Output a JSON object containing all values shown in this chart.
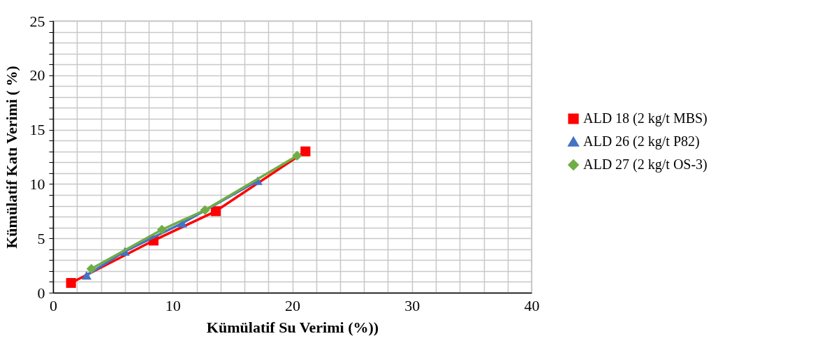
{
  "chart_data": {
    "type": "line",
    "xlabel": "Kümülatif Su Verimi (%))",
    "ylabel": "Kümülatif  Katı Verimi ( %)",
    "xlim": [
      0,
      40
    ],
    "ylim": [
      0,
      25
    ],
    "xticks": [
      0,
      {
        "value": 2,
        "label": null
      },
      {
        "value": 4,
        "label": null
      },
      {
        "value": 6,
        "label": null
      },
      {
        "value": 8,
        "label": null
      },
      10,
      {
        "value": 12,
        "label": null
      },
      {
        "value": 14,
        "label": null
      },
      {
        "value": 16,
        "label": null
      },
      {
        "value": 18,
        "label": null
      },
      20,
      {
        "value": 22,
        "label": null
      },
      {
        "value": 24,
        "label": null
      },
      {
        "value": 26,
        "label": null
      },
      {
        "value": 28,
        "label": null
      },
      30,
      {
        "value": 32,
        "label": null
      },
      {
        "value": 34,
        "label": null
      },
      {
        "value": 36,
        "label": null
      },
      {
        "value": 38,
        "label": null
      },
      40
    ],
    "yticks": [
      0,
      {
        "value": 1,
        "label": null
      },
      {
        "value": 2,
        "label": null
      },
      {
        "value": 3,
        "label": null
      },
      {
        "value": 4,
        "label": null
      },
      5,
      {
        "value": 6,
        "label": null
      },
      {
        "value": 7,
        "label": null
      },
      {
        "value": 8,
        "label": null
      },
      {
        "value": 9,
        "label": null
      },
      10,
      {
        "value": 11,
        "label": null
      },
      {
        "value": 12,
        "label": null
      },
      {
        "value": 13,
        "label": null
      },
      {
        "value": 14,
        "label": null
      },
      15,
      {
        "value": 16,
        "label": null
      },
      {
        "value": 17,
        "label": null
      },
      {
        "value": 18,
        "label": null
      },
      {
        "value": 19,
        "label": null
      },
      20,
      {
        "value": 21,
        "label": null
      },
      {
        "value": 22,
        "label": null
      },
      {
        "value": 23,
        "label": null
      },
      {
        "value": 24,
        "label": null
      },
      25
    ],
    "grid": true,
    "legend": "right",
    "line_style": "solid",
    "series": [
      {
        "name": "ALD 18 (2 kg/t MBS)",
        "color": "#ff0000",
        "marker": "square",
        "x": [
          1.5,
          8.4,
          13.6,
          21.1
        ],
        "values": [
          0.9,
          4.8,
          7.5,
          13.0
        ]
      },
      {
        "name": "ALD 26 (2 kg/t P82)",
        "color": "#4472c4",
        "marker": "triangle",
        "x": [
          2.8,
          6.0,
          10.8,
          17.1
        ],
        "values": [
          1.6,
          3.8,
          6.4,
          10.3
        ]
      },
      {
        "name": "ALD 27 (2 kg/t OS-3)",
        "color": "#70ad47",
        "marker": "diamond",
        "x": [
          3.2,
          9.1,
          12.7,
          20.4
        ],
        "values": [
          2.2,
          5.8,
          7.6,
          12.6
        ]
      }
    ]
  }
}
